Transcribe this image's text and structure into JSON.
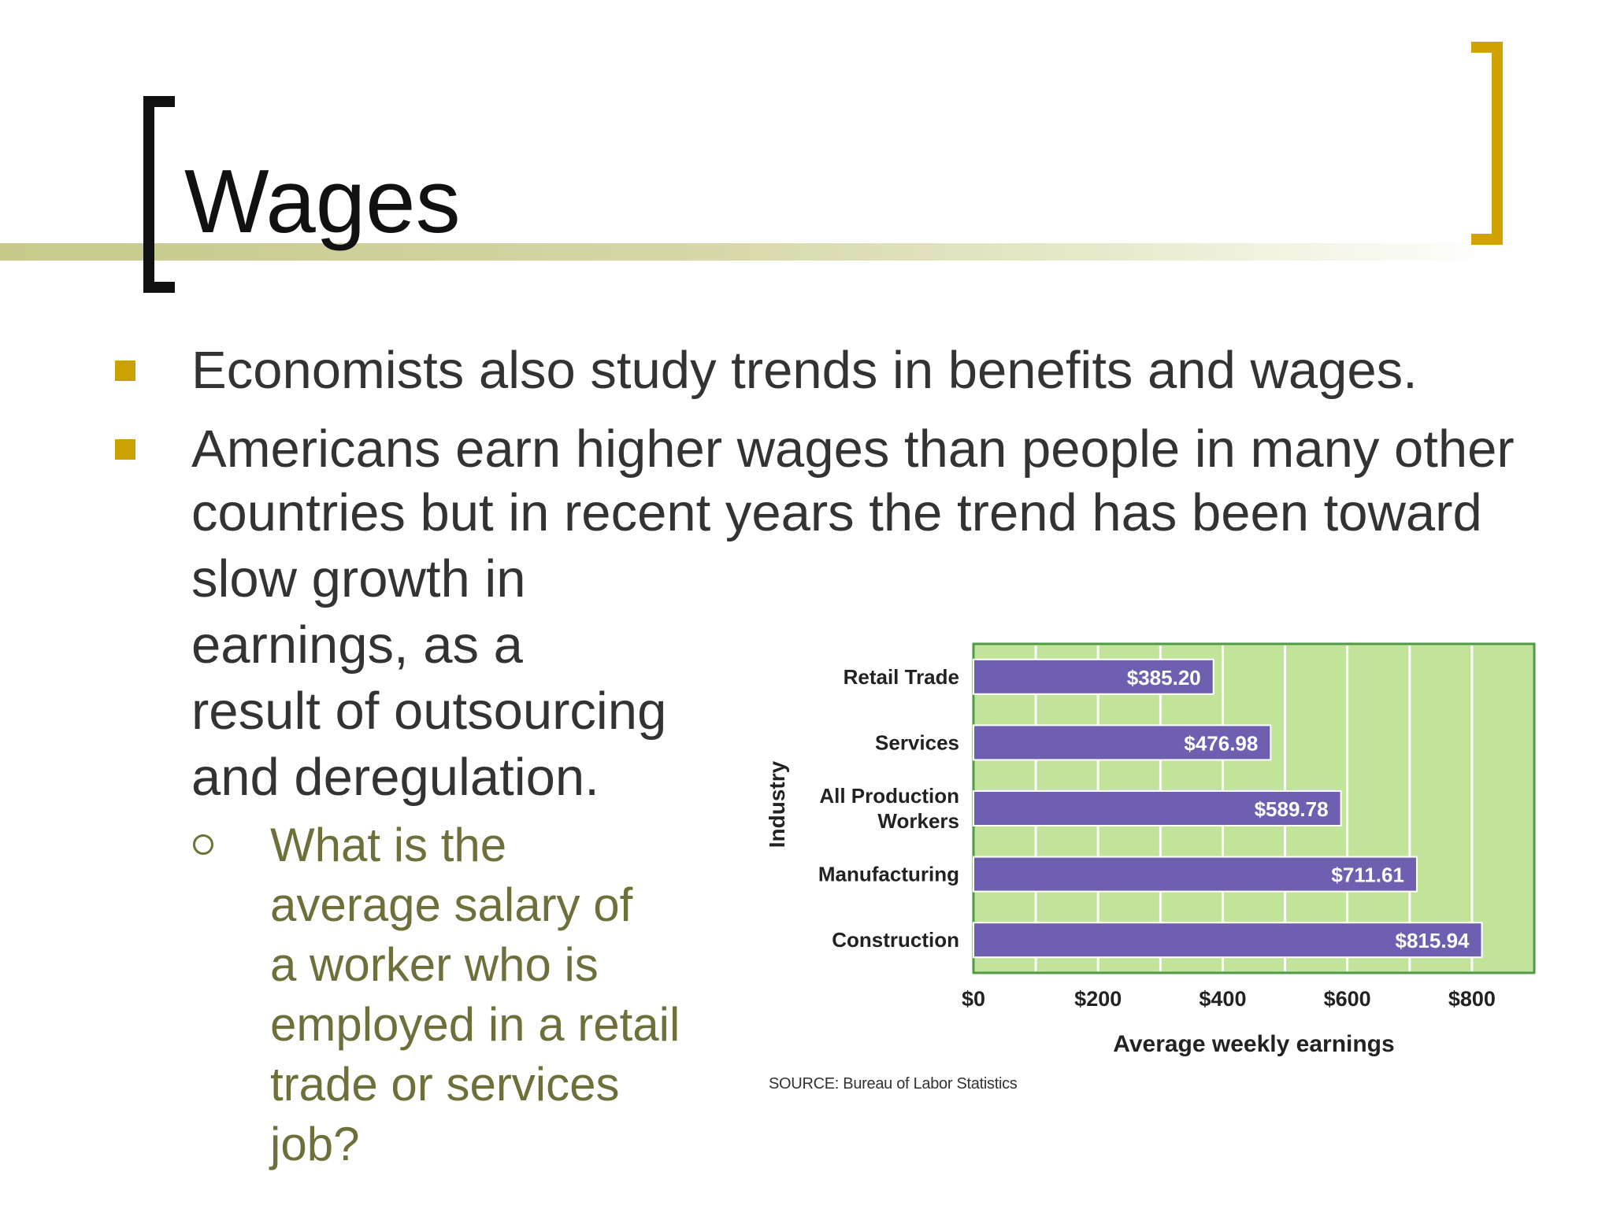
{
  "slide": {
    "title": "Wages",
    "bullets": [
      "Economists also study trends in benefits and wages.",
      "Americans earn higher wages than people in many other"
    ],
    "bullet2_lines": [
      "countries but in recent years the trend has been toward",
      "slow growth in",
      "earnings, as a",
      "result of outsourcing",
      "and deregulation."
    ],
    "sub_bullet_lines": [
      "What is the",
      "average salary of",
      "a worker who is",
      "employed in a retail",
      "trade or services",
      "job?"
    ],
    "source_note": "SOURCE: Bureau of Labor Statistics"
  },
  "colors": {
    "bullet": "#c9a100",
    "bar": "#6e5fb0",
    "plot_bg": "#c2e39a",
    "plot_border": "#4e9b45",
    "sub_text": "#6f6f3c"
  },
  "chart_data": {
    "type": "bar",
    "orientation": "horizontal",
    "categories": [
      "Retail Trade",
      "Services",
      "All Production Workers",
      "Manufacturing",
      "Construction"
    ],
    "category_lines": [
      [
        "Retail Trade"
      ],
      [
        "Services"
      ],
      [
        "All Production",
        "Workers"
      ],
      [
        "Manufacturing"
      ],
      [
        "Construction"
      ]
    ],
    "values": [
      385.2,
      476.98,
      589.78,
      711.61,
      815.94
    ],
    "data_labels": [
      "$385.20",
      "$476.98",
      "$589.78",
      "$711.61",
      "$815.94"
    ],
    "xlabel": "Average weekly earnings",
    "ylabel": "Industry",
    "xlim": [
      0,
      900
    ],
    "x_ticks": [
      0,
      200,
      400,
      600,
      800
    ],
    "x_tick_labels": [
      "$0",
      "$200",
      "$400",
      "$600",
      "$800"
    ],
    "grid": "vertical gridlines every 100",
    "legend": "none"
  }
}
